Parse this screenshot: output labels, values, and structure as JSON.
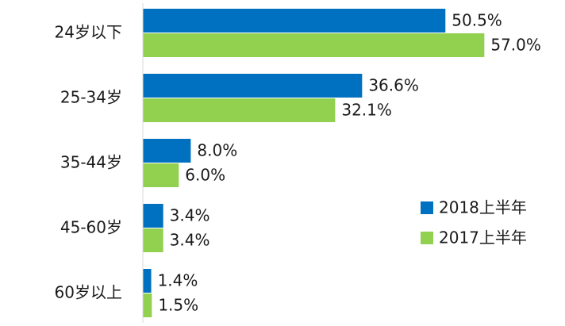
{
  "chart_data": {
    "type": "bar",
    "orientation": "horizontal",
    "categories": [
      "24岁以下",
      "25-34岁",
      "35-44岁",
      "45-60岁",
      "60岁以上"
    ],
    "series": [
      {
        "name": "2018上半年",
        "color": "#0070c0",
        "values": [
          50.5,
          36.6,
          8.0,
          3.4,
          1.4
        ],
        "labels": [
          "50.5%",
          "36.6%",
          "8.0%",
          "3.4%",
          "1.4%"
        ]
      },
      {
        "name": "2017上半年",
        "color": "#92d050",
        "values": [
          57.0,
          32.1,
          6.0,
          3.4,
          1.5
        ],
        "labels": [
          "57.0%",
          "32.1%",
          "6.0%",
          "3.4%",
          "1.5%"
        ]
      }
    ],
    "value_unit": "%",
    "xlim": [
      0,
      60
    ],
    "grid": false,
    "legend_position": "right"
  }
}
